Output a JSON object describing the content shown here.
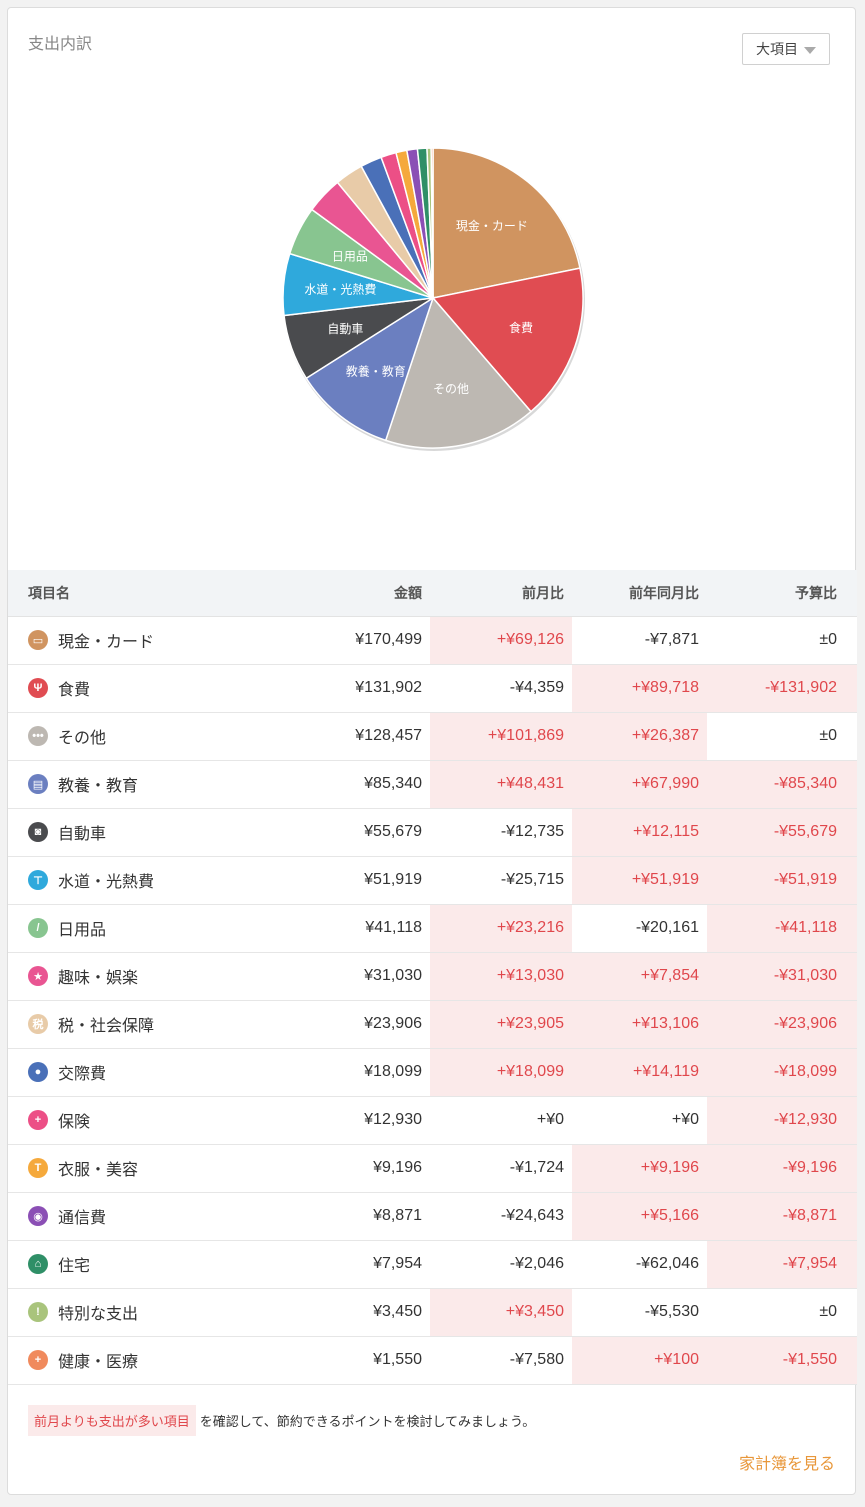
{
  "header": {
    "title": "支出内訳",
    "dropdown_label": "大項目"
  },
  "chart_data": {
    "type": "pie",
    "slices": [
      {
        "label": "現金・カード",
        "value": 170499,
        "color": "#d09460",
        "show_label": true
      },
      {
        "label": "食費",
        "value": 131902,
        "color": "#e04c52",
        "show_label": true
      },
      {
        "label": "その他",
        "value": 128457,
        "color": "#bdb8b2",
        "show_label": true
      },
      {
        "label": "教養・教育",
        "value": 85340,
        "color": "#6b7fc0",
        "show_label": true
      },
      {
        "label": "自動車",
        "value": 55679,
        "color": "#4a4b4e",
        "show_label": true
      },
      {
        "label": "水道・光熱費",
        "value": 51919,
        "color": "#2fa9dc",
        "show_label": true
      },
      {
        "label": "日用品",
        "value": 41118,
        "color": "#88c590",
        "show_label": true
      },
      {
        "label": "趣味・娯楽",
        "value": 31030,
        "color": "#e95592",
        "show_label": false
      },
      {
        "label": "税・社会保障",
        "value": 23906,
        "color": "#e8cba8",
        "show_label": false
      },
      {
        "label": "交際費",
        "value": 18099,
        "color": "#4a70b8",
        "show_label": false
      },
      {
        "label": "保険",
        "value": 12930,
        "color": "#ec4f86",
        "show_label": false
      },
      {
        "label": "衣服・美容",
        "value": 9196,
        "color": "#f5a93c",
        "show_label": false
      },
      {
        "label": "通信費",
        "value": 8871,
        "color": "#8b4fb5",
        "show_label": false
      },
      {
        "label": "住宅",
        "value": 7954,
        "color": "#2f8f67",
        "show_label": false
      },
      {
        "label": "特別な支出",
        "value": 3450,
        "color": "#a9c47c",
        "show_label": false
      },
      {
        "label": "健康・医療",
        "value": 1550,
        "color": "#f08a5d",
        "show_label": false
      }
    ]
  },
  "table": {
    "headers": [
      "項目名",
      "金額",
      "前月比",
      "前年同月比",
      "予算比"
    ],
    "rows": [
      {
        "name": "現金・カード",
        "icon": "wallet-icon",
        "icon_glyph": "▭",
        "icon_color": "#d09460",
        "amount": "¥170,499",
        "mom": "+¥69,126",
        "mom_hl": true,
        "yoy": "-¥7,871",
        "yoy_hl": false,
        "budget": "±0",
        "budget_hl": false
      },
      {
        "name": "食費",
        "icon": "fork-knife-icon",
        "icon_glyph": "Ψ",
        "icon_color": "#e04c52",
        "amount": "¥131,902",
        "mom": "-¥4,359",
        "mom_hl": false,
        "yoy": "+¥89,718",
        "yoy_hl": true,
        "budget": "-¥131,902",
        "budget_hl": true
      },
      {
        "name": "その他",
        "icon": "more-dots-icon",
        "icon_glyph": "•••",
        "icon_color": "#bdb8b2",
        "amount": "¥128,457",
        "mom": "+¥101,869",
        "mom_hl": true,
        "yoy": "+¥26,387",
        "yoy_hl": true,
        "budget": "±0",
        "budget_hl": false
      },
      {
        "name": "教養・教育",
        "icon": "book-icon",
        "icon_glyph": "▤",
        "icon_color": "#6b7fc0",
        "amount": "¥85,340",
        "mom": "+¥48,431",
        "mom_hl": true,
        "yoy": "+¥67,990",
        "yoy_hl": true,
        "budget": "-¥85,340",
        "budget_hl": true
      },
      {
        "name": "自動車",
        "icon": "car-icon",
        "icon_glyph": "◙",
        "icon_color": "#4a4b4e",
        "amount": "¥55,679",
        "mom": "-¥12,735",
        "mom_hl": false,
        "yoy": "+¥12,115",
        "yoy_hl": true,
        "budget": "-¥55,679",
        "budget_hl": true
      },
      {
        "name": "水道・光熱費",
        "icon": "faucet-icon",
        "icon_glyph": "⊤",
        "icon_color": "#2fa9dc",
        "amount": "¥51,919",
        "mom": "-¥25,715",
        "mom_hl": false,
        "yoy": "+¥51,919",
        "yoy_hl": true,
        "budget": "-¥51,919",
        "budget_hl": true
      },
      {
        "name": "日用品",
        "icon": "daily-goods-icon",
        "icon_glyph": "/",
        "icon_color": "#88c590",
        "amount": "¥41,118",
        "mom": "+¥23,216",
        "mom_hl": true,
        "yoy": "-¥20,161",
        "yoy_hl": false,
        "budget": "-¥41,118",
        "budget_hl": true
      },
      {
        "name": "趣味・娯楽",
        "icon": "star-icon",
        "icon_glyph": "★",
        "icon_color": "#e95592",
        "amount": "¥31,030",
        "mom": "+¥13,030",
        "mom_hl": true,
        "yoy": "+¥7,854",
        "yoy_hl": true,
        "budget": "-¥31,030",
        "budget_hl": true
      },
      {
        "name": "税・社会保障",
        "icon": "tax-icon",
        "icon_glyph": "税",
        "icon_color": "#e8cba8",
        "amount": "¥23,906",
        "mom": "+¥23,905",
        "mom_hl": true,
        "yoy": "+¥13,106",
        "yoy_hl": true,
        "budget": "-¥23,906",
        "budget_hl": true
      },
      {
        "name": "交際費",
        "icon": "people-icon",
        "icon_glyph": "●",
        "icon_color": "#4a70b8",
        "amount": "¥18,099",
        "mom": "+¥18,099",
        "mom_hl": true,
        "yoy": "+¥14,119",
        "yoy_hl": true,
        "budget": "-¥18,099",
        "budget_hl": true
      },
      {
        "name": "保険",
        "icon": "first-aid-icon",
        "icon_glyph": "+",
        "icon_color": "#ec4f86",
        "amount": "¥12,930",
        "mom": "+¥0",
        "mom_hl": false,
        "yoy": "+¥0",
        "yoy_hl": false,
        "budget": "-¥12,930",
        "budget_hl": true
      },
      {
        "name": "衣服・美容",
        "icon": "shirt-icon",
        "icon_glyph": "T",
        "icon_color": "#f5a93c",
        "amount": "¥9,196",
        "mom": "-¥1,724",
        "mom_hl": false,
        "yoy": "+¥9,196",
        "yoy_hl": true,
        "budget": "-¥9,196",
        "budget_hl": true
      },
      {
        "name": "通信費",
        "icon": "antenna-icon",
        "icon_glyph": "◉",
        "icon_color": "#8b4fb5",
        "amount": "¥8,871",
        "mom": "-¥24,643",
        "mom_hl": false,
        "yoy": "+¥5,166",
        "yoy_hl": true,
        "budget": "-¥8,871",
        "budget_hl": true
      },
      {
        "name": "住宅",
        "icon": "house-icon",
        "icon_glyph": "⌂",
        "icon_color": "#2f8f67",
        "amount": "¥7,954",
        "mom": "-¥2,046",
        "mom_hl": false,
        "yoy": "-¥62,046",
        "yoy_hl": false,
        "budget": "-¥7,954",
        "budget_hl": true
      },
      {
        "name": "特別な支出",
        "icon": "exclamation-icon",
        "icon_glyph": "!",
        "icon_color": "#a9c47c",
        "amount": "¥3,450",
        "mom": "+¥3,450",
        "mom_hl": true,
        "yoy": "-¥5,530",
        "yoy_hl": false,
        "budget": "±0",
        "budget_hl": false
      },
      {
        "name": "健康・医療",
        "icon": "plus-icon",
        "icon_glyph": "+",
        "icon_color": "#f08a5d",
        "amount": "¥1,550",
        "mom": "-¥7,580",
        "mom_hl": false,
        "yoy": "+¥100",
        "yoy_hl": true,
        "budget": "-¥1,550",
        "budget_hl": true
      }
    ]
  },
  "footer": {
    "highlight_text": "前月よりも支出が多い項目",
    "note_text": "を確認して、節約できるポイントを検討してみましょう。",
    "link_label": "家計簿を見る"
  }
}
